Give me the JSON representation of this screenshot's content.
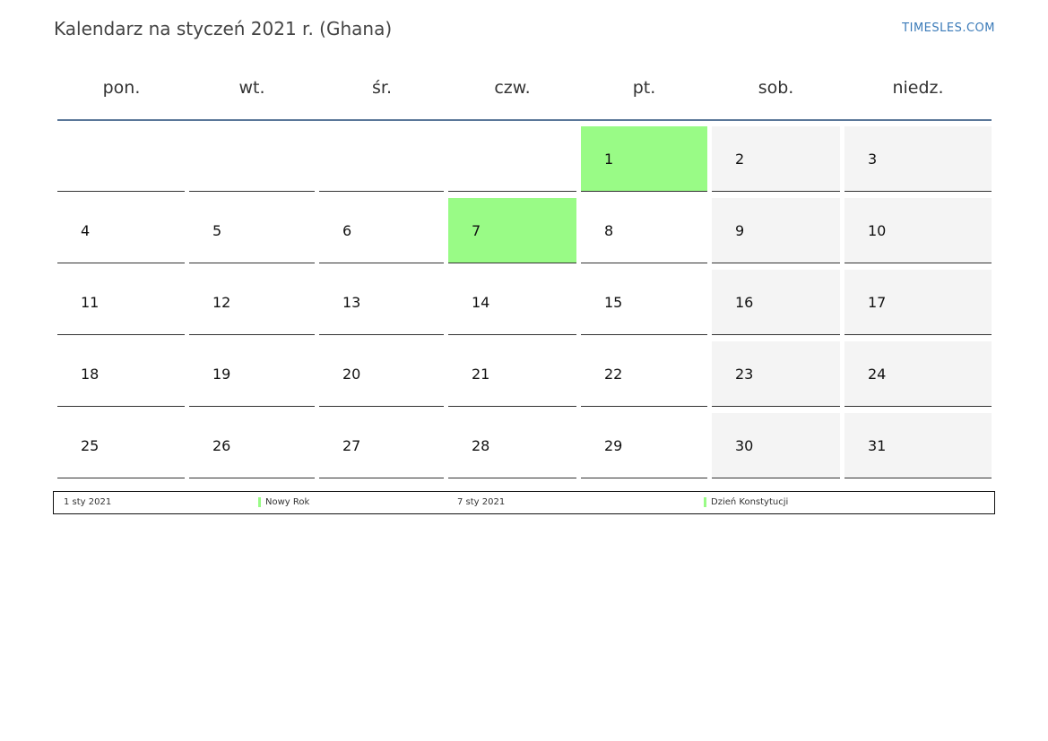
{
  "header": {
    "title": "Kalendarz na styczeń 2021 r. (Ghana)",
    "brand": "TIMESLES.COM"
  },
  "calendar": {
    "weekdays": [
      "pon.",
      "wt.",
      "śr.",
      "czw.",
      "pt.",
      "sob.",
      "niedz."
    ],
    "weeks": [
      [
        "",
        "",
        "",
        "",
        "1",
        "2",
        "3"
      ],
      [
        "4",
        "5",
        "6",
        "7",
        "8",
        "9",
        "10"
      ],
      [
        "11",
        "12",
        "13",
        "14",
        "15",
        "16",
        "17"
      ],
      [
        "18",
        "19",
        "20",
        "21",
        "22",
        "23",
        "24"
      ],
      [
        "25",
        "26",
        "27",
        "28",
        "29",
        "30",
        "31"
      ]
    ],
    "holidays": [
      "1",
      "7"
    ],
    "colors": {
      "holiday": "#99fb86",
      "weekend": "#f4f4f4",
      "header_line": "#5a7799"
    }
  },
  "legend": {
    "items": [
      {
        "date": "1 sty 2021",
        "name": "Nowy Rok"
      },
      {
        "date": "7 sty 2021",
        "name": "Dzień Konstytucji"
      }
    ]
  }
}
